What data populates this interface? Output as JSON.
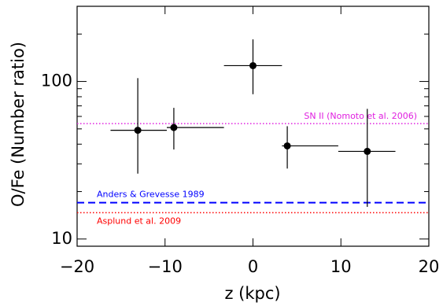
{
  "chart_data": {
    "type": "errorbar",
    "xlabel": "z (kpc)",
    "ylabel": "O/Fe (Number ratio)",
    "xlim": [
      -20,
      20
    ],
    "xticks": [
      {
        "value": -20,
        "label": "−20"
      },
      {
        "value": -10,
        "label": "−10"
      },
      0,
      10,
      20
    ],
    "ylim": [
      9,
      300
    ],
    "yscale": "log",
    "yticks": [
      10,
      100
    ],
    "yminorticks": [
      20,
      30,
      40,
      50,
      60,
      70,
      80,
      90,
      200,
      300
    ],
    "color": "#000000",
    "x": [
      -13.1,
      -9.0,
      0,
      3.9,
      13.0
    ],
    "x_lower": [
      -16.2,
      -9.8,
      -3.3,
      3.3,
      9.7
    ],
    "x_upper": [
      -9.8,
      -3.3,
      3.3,
      9.7,
      16.2
    ],
    "values": [
      49,
      51,
      126,
      39,
      36
    ],
    "y_lower": [
      26,
      37,
      83,
      28,
      16
    ],
    "y_upper": [
      105,
      68,
      185,
      52,
      67
    ],
    "reference_lines": [
      {
        "name": "SN II (Nomoto et al. 2006)",
        "value": 54,
        "color": "#e020e0",
        "style": "dotted"
      },
      {
        "name": "Anders & Grevesse 1989",
        "value": 17,
        "color": "#0000ff",
        "style": "dashed"
      },
      {
        "name": "Asplund et al. 2009",
        "value": 14.7,
        "color": "#ff0000",
        "style": "dotted"
      }
    ]
  }
}
